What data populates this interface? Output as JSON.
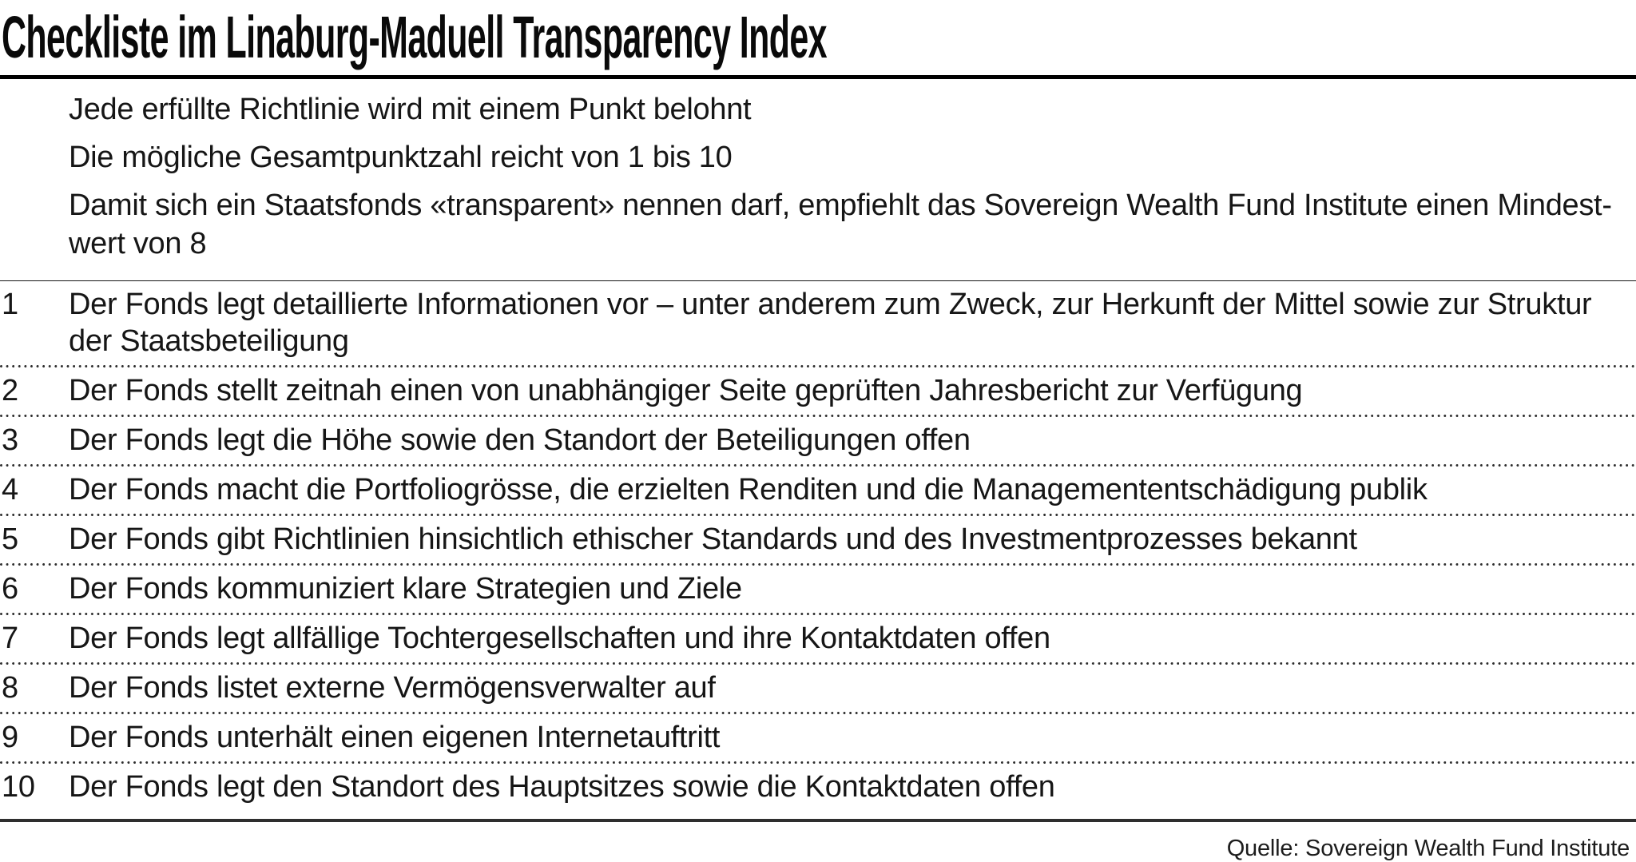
{
  "title": "Checkliste im Linaburg-Maduell Transparency Index",
  "intro": {
    "items": [
      "Jede erfüllte Richtlinie wird mit einem Punkt belohnt",
      "Die mögliche Gesamtpunktzahl reicht von 1 bis 10",
      "Damit sich ein Staatsfonds «transparent» nennen darf, empfiehlt das Sovereign Wealth Fund Institute einen Mindest­wert von 8"
    ]
  },
  "checklist": {
    "rows": [
      {
        "num": "1",
        "text": "Der Fonds legt detaillierte Informationen vor – unter anderem zum Zweck, zur Herkunft der Mittel sowie zur Struktur der Staatsbeteiligung"
      },
      {
        "num": "2",
        "text": "Der Fonds stellt zeitnah einen von unabhängiger Seite geprüften Jahresbericht zur Verfügung"
      },
      {
        "num": "3",
        "text": "Der Fonds legt die Höhe sowie den Standort der Beteiligungen offen"
      },
      {
        "num": "4",
        "text": "Der Fonds macht die Portfoliogrösse, die erzielten Renditen und die Managemententschädigung publik"
      },
      {
        "num": "5",
        "text": "Der Fonds gibt Richtlinien hinsichtlich ethischer Standards und des Investmentprozesses bekannt"
      },
      {
        "num": "6",
        "text": "Der Fonds kommuniziert klare Strategien und Ziele"
      },
      {
        "num": "7",
        "text": "Der Fonds legt allfällige Tochtergesellschaften und ihre Kontaktdaten offen"
      },
      {
        "num": "8",
        "text": "Der Fonds listet externe Vermögensverwalter auf"
      },
      {
        "num": "9",
        "text": "Der Fonds unterhält einen eigenen Internetauftritt"
      },
      {
        "num": "10",
        "text": "Der Fonds legt den Standort des Hauptsitzes sowie die Kontaktdaten offen"
      }
    ]
  },
  "footer": {
    "source": "Quelle: Sovereign Wealth Fund Institute"
  },
  "colors": {
    "text": "#161616",
    "title_rule": "#000000",
    "end_rule": "#2e2e2e",
    "dotted": "#2d2d2d",
    "background": "#ffffff"
  }
}
